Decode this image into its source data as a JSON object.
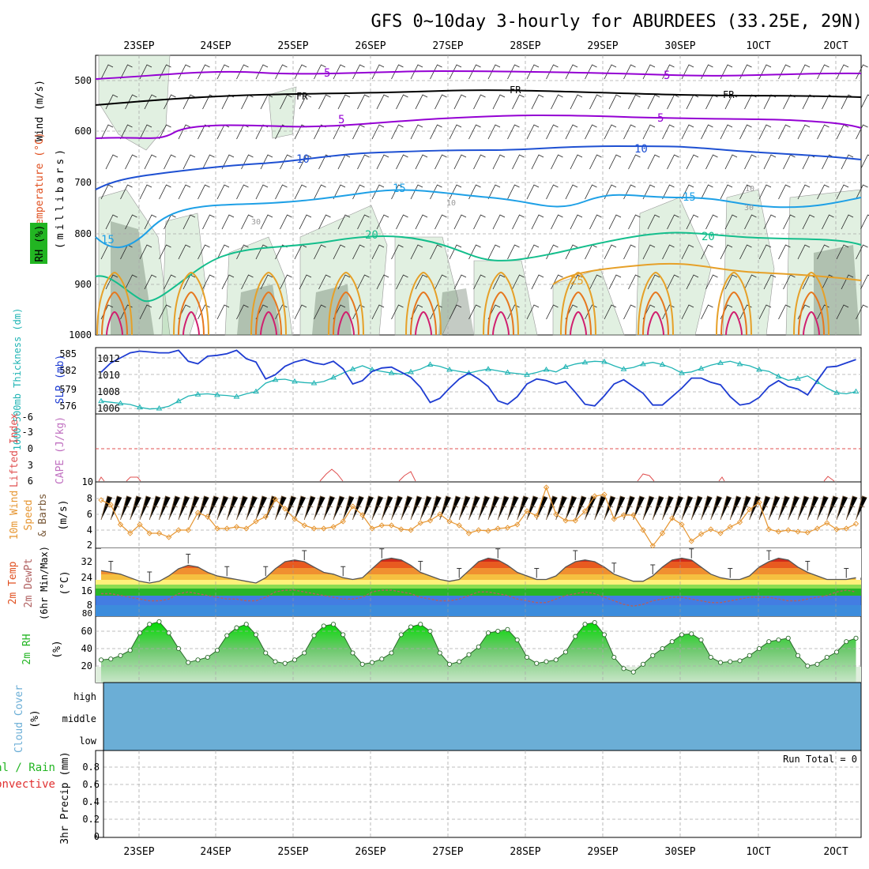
{
  "title": "GFS 0~10day 3-hourly for ABURDEES (33.25E, 29N)",
  "dates": [
    "23SEP",
    "24SEP",
    "25SEP",
    "26SEP",
    "27SEP",
    "28SEP",
    "29SEP",
    "30SEP",
    "1OCT",
    "2OCT"
  ],
  "colors": {
    "isotherm_minus5": "#9400d3",
    "freezing": "#000000",
    "isotherm_5": "#9400d3",
    "isotherm_10": "#1e50d2",
    "isotherm_15": "#1ea0e6",
    "isotherm_20": "#14be8c",
    "isotherm_25": "#e6a028",
    "isotherm_30": "#e6781e",
    "rh_shade": "#5aaa5a",
    "slp_line": "#1e3cd2",
    "thickness_line": "#20b4b4",
    "wind_line": "#e69632",
    "rain_green": "#00c800",
    "cloud_blue": "#6baed6"
  },
  "panels": {
    "upper": {
      "ylabel_wind": "Wind (m/s)",
      "ylabel_temp": "Temperature (°C)",
      "ylabel_rh": "RH (%)",
      "ylabel_units": "(millibars)",
      "y_ticks": [
        "500",
        "600",
        "700",
        "800",
        "900",
        "1000"
      ],
      "contour_labels": [
        "5",
        "5",
        "FR",
        "FR",
        "FR",
        "5",
        "5",
        "10",
        "10",
        "15",
        "15",
        "15",
        "20",
        "20",
        "25",
        "30",
        "10",
        "30",
        "10"
      ]
    },
    "slp": {
      "ylabel_thick": "1000-500mb Thickness (dm)",
      "ylabel_slp": "SLP (mb)",
      "left_ticks": [
        "585",
        "582",
        "579",
        "576"
      ],
      "right_ticks": [
        "1012",
        "1010",
        "1008",
        "1006"
      ]
    },
    "cape": {
      "ylabel_li": "Lifted Index",
      "ylabel_cape": "CAPE (J/kg)",
      "left_ticks": [
        "-6",
        "-3",
        "0",
        "3",
        "6"
      ],
      "right_ticks": [
        "10"
      ]
    },
    "wind": {
      "ylabel_a": "10m Wind",
      "ylabel_b": "Speed",
      "ylabel_c": "& Barbs",
      "ylabel_units": "(m/s)",
      "ticks": [
        "8",
        "6",
        "4",
        "2"
      ]
    },
    "temp": {
      "ylabel_a": "2m Temp",
      "ylabel_b": "2m DewPt",
      "ylabel_c": "(6hr Min/Max)",
      "ylabel_units": "(°C)",
      "ticks": [
        "32",
        "24",
        "16",
        "8",
        "80"
      ]
    },
    "rh": {
      "ylabel": "2m RH",
      "ylabel_units": "(%)",
      "ticks": [
        "60",
        "40",
        "20"
      ]
    },
    "cloud": {
      "ylabel": "Cloud Cover",
      "ylabel_units": "(%)",
      "levels": [
        "high",
        "middle",
        "low"
      ]
    },
    "precip": {
      "ylabel_a": "Total / Rain",
      "ylabel_b": "Convective",
      "ylabel_c": "3hr Precip (mm)",
      "ticks": [
        "0.8",
        "0.6",
        "0.4",
        "0.2",
        "0"
      ],
      "run_total": "Run Total = 0"
    }
  },
  "chart_data": [
    {
      "type": "line",
      "panel": "1000-500mb thickness",
      "x": [
        "22SEP 12Z",
        "22SEP 15Z",
        "22SEP 18Z",
        "22SEP 21Z",
        "23SEP 00Z",
        "23SEP 03Z",
        "23SEP 06Z",
        "23SEP 09Z",
        "23SEP 12Z",
        "23SEP 15Z",
        "23SEP 18Z",
        "23SEP 21Z",
        "24SEP 00Z",
        "24SEP 03Z",
        "24SEP 06Z",
        "24SEP 09Z",
        "24SEP 12Z",
        "24SEP 15Z",
        "24SEP 18Z",
        "24SEP 21Z",
        "25SEP 00Z",
        "25SEP 03Z",
        "25SEP 06Z",
        "25SEP 09Z",
        "25SEP 12Z",
        "25SEP 15Z",
        "25SEP 18Z",
        "25SEP 21Z",
        "26SEP 00Z",
        "26SEP 03Z",
        "26SEP 06Z",
        "26SEP 09Z",
        "26SEP 12Z",
        "26SEP 15Z",
        "26SEP 18Z",
        "26SEP 21Z",
        "27SEP 00Z",
        "27SEP 03Z",
        "27SEP 06Z",
        "27SEP 09Z",
        "27SEP 12Z",
        "27SEP 15Z",
        "27SEP 18Z",
        "27SEP 21Z",
        "28SEP 00Z",
        "28SEP 03Z",
        "28SEP 06Z",
        "28SEP 09Z",
        "28SEP 12Z",
        "28SEP 15Z",
        "28SEP 18Z",
        "28SEP 21Z",
        "29SEP 00Z",
        "29SEP 03Z",
        "29SEP 06Z",
        "29SEP 09Z",
        "29SEP 12Z",
        "29SEP 15Z",
        "29SEP 18Z",
        "29SEP 21Z",
        "30SEP 00Z",
        "30SEP 03Z",
        "30SEP 06Z",
        "30SEP 09Z",
        "30SEP 12Z",
        "30SEP 15Z",
        "30SEP 18Z",
        "30SEP 21Z",
        "1OCT 00Z",
        "1OCT 03Z",
        "1OCT 06Z",
        "1OCT 09Z",
        "1OCT 12Z",
        "1OCT 15Z",
        "1OCT 18Z",
        "1OCT 21Z",
        "2OCT 00Z",
        "2OCT 03Z",
        "2OCT 06Z"
      ],
      "series": [
        {
          "values": [
            577.3,
            577.1,
            576.9,
            576.7,
            576.2,
            575.9,
            576.0,
            576.4,
            577.3,
            578.2,
            578.5,
            578.6,
            578.4,
            578.3,
            578.1,
            578.6,
            579.0,
            580.5,
            581.1,
            581.2,
            580.8,
            580.6,
            580.5,
            580.8,
            581.5,
            582.3,
            583.0,
            583.6,
            582.9,
            582.6,
            582.3,
            582.1,
            582.5,
            583.0,
            583.8,
            583.5,
            582.9,
            582.6,
            582.3,
            582.7,
            583.0,
            582.7,
            582.4,
            582.2,
            582.0,
            582.4,
            582.9,
            582.5,
            583.4,
            583.9,
            584.2,
            584.4,
            584.3,
            583.6,
            583.0,
            583.3,
            583.9,
            584.2,
            583.8,
            583.2,
            582.3,
            582.5,
            583.1,
            583.7,
            584.1,
            584.4,
            583.9,
            583.6,
            582.9,
            582.6,
            581.7,
            581.0,
            581.3,
            581.8,
            580.7,
            579.6,
            578.8,
            578.6,
            579.0
          ]
        },
        {
          "values": [
            1010.3,
            1011.4,
            1012.0,
            1012.6,
            1012.8,
            1012.7,
            1012.6,
            1012.6,
            1012.9,
            1011.6,
            1011.3,
            1012.2,
            1012.3,
            1012.5,
            1012.9,
            1011.9,
            1011.5,
            1009.5,
            1010.0,
            1011.0,
            1011.5,
            1011.8,
            1011.4,
            1011.2,
            1011.6,
            1010.7,
            1008.9,
            1009.3,
            1010.4,
            1010.8,
            1010.9,
            1010.3,
            1009.7,
            1008.5,
            1006.7,
            1007.2,
            1008.4,
            1009.5,
            1010.2,
            1009.5,
            1008.6,
            1006.9,
            1006.5,
            1007.4,
            1008.9,
            1009.5,
            1009.3,
            1008.9,
            1009.2,
            1007.9,
            1006.5,
            1006.3,
            1007.5,
            1008.9,
            1009.4,
            1008.6,
            1007.8,
            1006.4,
            1006.4,
            1007.4,
            1008.4,
            1009.6,
            1009.6,
            1009.1,
            1008.8,
            1007.4,
            1006.4,
            1006.6,
            1007.3,
            1008.6,
            1009.3,
            1008.6,
            1008.3,
            1007.6,
            1009.3,
            1010.9,
            1011.0,
            1011.4,
            1011.8
          ]
        }
      ]
    },
    {
      "type": "line",
      "panel": "10m wind speed (m/s)",
      "series": [
        {
          "values": [
            7.8,
            7.2,
            4.7,
            3.6,
            4.7,
            3.6,
            3.6,
            3.1,
            4.0,
            4.0,
            6.2,
            5.7,
            4.2,
            4.2,
            4.4,
            4.2,
            5.1,
            5.7,
            7.9,
            6.7,
            5.4,
            4.6,
            4.2,
            4.2,
            4.4,
            5.1,
            7.0,
            5.9,
            4.2,
            4.6,
            4.6,
            4.1,
            4.0,
            4.9,
            5.2,
            6.0,
            5.1,
            4.6,
            3.6,
            4.0,
            3.9,
            4.2,
            4.3,
            4.7,
            6.4,
            5.8,
            9.4,
            6.0,
            5.2,
            5.2,
            6.4,
            8.3,
            8.5,
            5.4,
            5.9,
            5.9,
            4.0,
            2.0,
            3.6,
            5.5,
            4.7,
            2.6,
            3.5,
            4.1,
            3.6,
            4.4,
            5.0,
            6.6,
            7.5,
            4.1,
            3.8,
            4.0,
            3.8,
            3.7,
            4.2,
            4.9,
            4.1,
            4.2,
            4.8
          ]
        }
      ]
    },
    {
      "type": "line",
      "panel": "2m RH (%)",
      "series": [
        {
          "values": [
            27,
            28,
            32,
            38,
            58,
            68,
            71,
            58,
            40,
            24,
            27,
            30,
            38,
            55,
            64,
            68,
            56,
            35,
            25,
            23,
            27,
            35,
            55,
            66,
            68,
            56,
            35,
            22,
            24,
            28,
            35,
            56,
            65,
            68,
            60,
            35,
            22,
            25,
            33,
            42,
            58,
            60,
            62,
            50,
            30,
            23,
            25,
            27,
            36,
            54,
            68,
            70,
            56,
            30,
            17,
            13,
            22,
            32,
            40,
            48,
            56,
            57,
            50,
            30,
            24,
            25,
            26,
            32,
            40,
            48,
            50,
            52,
            32,
            20,
            22,
            30,
            36,
            48,
            52
          ]
        }
      ]
    },
    {
      "type": "area",
      "panel": "2m temperature (°C)",
      "series": [
        {
          "values": [
            27,
            26,
            25,
            23,
            21,
            20,
            21,
            24,
            28,
            30,
            29,
            26,
            24,
            23,
            22,
            21,
            20,
            23,
            28,
            32,
            33,
            32,
            29,
            26,
            25,
            23,
            22,
            23,
            28,
            33,
            34,
            33,
            30,
            26,
            24,
            22,
            21,
            22,
            27,
            32,
            34,
            33,
            30,
            26,
            24,
            22,
            22,
            24,
            29,
            32,
            33,
            32,
            29,
            25,
            23,
            21,
            21,
            24,
            29,
            33,
            34,
            33,
            29,
            25,
            23,
            22,
            22,
            24,
            29,
            32,
            34,
            33,
            29,
            26,
            24,
            22,
            22,
            22,
            23
          ]
        },
        {
          "values": [
            14,
            14,
            13,
            12,
            11,
            10,
            10,
            11,
            14,
            15,
            14,
            13,
            12,
            11,
            11,
            10,
            10,
            12,
            15,
            16,
            16,
            15,
            14,
            13,
            12,
            11,
            11,
            12,
            15,
            16,
            16,
            15,
            14,
            12,
            11,
            10,
            10,
            11,
            13,
            15,
            15,
            14,
            13,
            11,
            10,
            9,
            9,
            11,
            13,
            14,
            15,
            14,
            12,
            10,
            8,
            7,
            8,
            10,
            11,
            12,
            12,
            11,
            10,
            9,
            9,
            10,
            11,
            12,
            12,
            12,
            11,
            10,
            10,
            11,
            12,
            13,
            15,
            16,
            15
          ]
        }
      ]
    },
    {
      "type": "bar",
      "panel": "3hr Precip (mm)",
      "values": [],
      "ylim": [
        0,
        1
      ]
    }
  ]
}
